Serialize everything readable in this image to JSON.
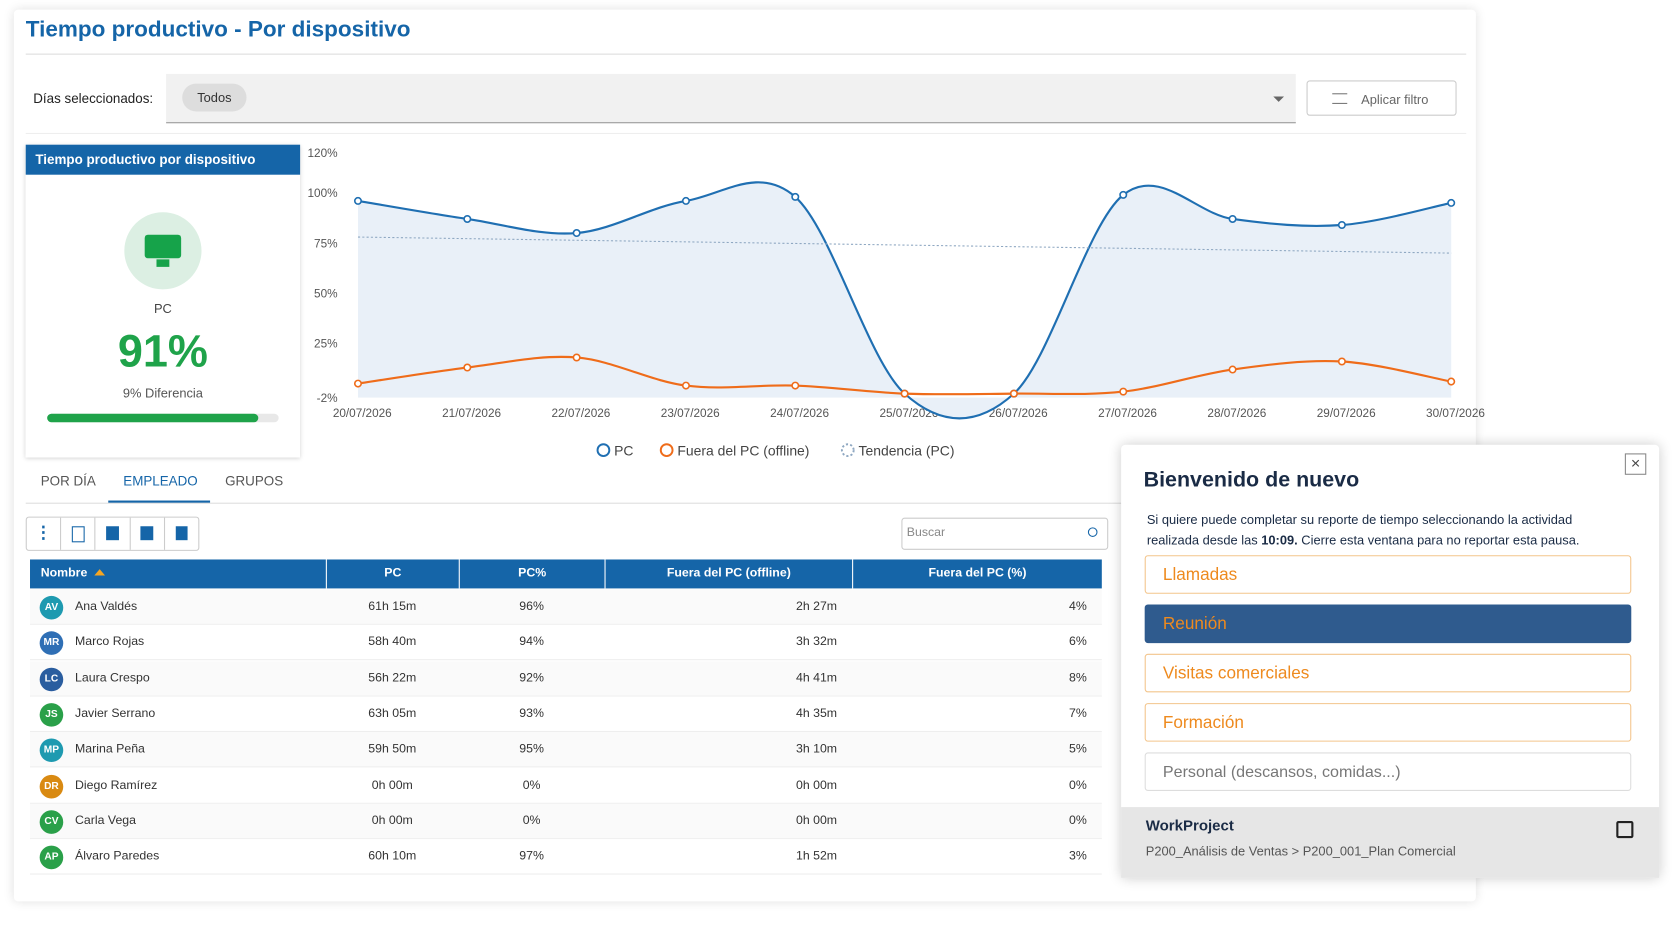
{
  "header": {
    "title": "Tiempo productivo - Por dispositivo"
  },
  "filter": {
    "label": "Días seleccionados:",
    "chip": "Todos",
    "button": "Aplicar filtro"
  },
  "card": {
    "title": "Tiempo productivo por dispositivo",
    "device": "PC",
    "value": 91,
    "value_label": "91%",
    "difference": "9% Diferencia"
  },
  "chart_data": {
    "type": "line",
    "categories": [
      "20/07/2026",
      "21/07/2026",
      "22/07/2026",
      "23/07/2026",
      "24/07/2026",
      "25/07/2026",
      "26/07/2026",
      "27/07/2026",
      "28/07/2026",
      "29/07/2026",
      "30/07/2026"
    ],
    "series": [
      {
        "name": "PC",
        "color": "#1f6fb2",
        "values": [
          96,
          87,
          80,
          96,
          98,
          0,
          0,
          99,
          87,
          84,
          95
        ]
      },
      {
        "name": "Fuera del PC (offline)",
        "color": "#ef6c1a",
        "values": [
          5,
          13,
          18,
          4,
          4,
          0,
          0,
          1,
          12,
          16,
          6
        ]
      },
      {
        "name": "Tendencia (PC)",
        "color": "#8fa8c2",
        "values": [
          78,
          77.2,
          76.4,
          75.6,
          74.8,
          74,
          73.2,
          72.4,
          71.6,
          70.8,
          70
        ]
      }
    ],
    "ylim": [
      -2,
      120
    ],
    "yticks": [
      {
        "value": -2,
        "label": "-2%"
      },
      {
        "value": 25,
        "label": "25%"
      },
      {
        "value": 50,
        "label": "50%"
      },
      {
        "value": 75,
        "label": "75%"
      },
      {
        "value": 100,
        "label": "100%"
      },
      {
        "value": 120,
        "label": "120%"
      }
    ]
  },
  "tabs": [
    "POR DÍA",
    "EMPLEADO",
    "GRUPOS"
  ],
  "search": "Buscar",
  "table": {
    "columns": [
      "Nombre",
      "PC",
      "PC%",
      "Fuera del PC (offline)",
      "Fuera del PC (%)"
    ],
    "rows": [
      {
        "initials": "AV",
        "cells": [
          "Ana Valdés",
          "61h 15m",
          "96%",
          "2h 27m",
          "4%"
        ]
      },
      {
        "initials": "MR",
        "cells": [
          "Marco Rojas",
          "58h 40m",
          "94%",
          "3h 32m",
          "6%"
        ]
      },
      {
        "initials": "LC",
        "cells": [
          "Laura Crespo",
          "56h 22m",
          "92%",
          "4h 41m",
          "8%"
        ]
      },
      {
        "initials": "JS",
        "cells": [
          "Javier Serrano",
          "63h 05m",
          "93%",
          "4h 35m",
          "7%"
        ]
      },
      {
        "initials": "MP",
        "cells": [
          "Marina Peña",
          "59h 50m",
          "95%",
          "3h 10m",
          "5%"
        ]
      },
      {
        "initials": "DR",
        "cells": [
          "Diego Ramírez",
          "0h 00m",
          "0%",
          "0h 00m",
          "0%"
        ]
      },
      {
        "initials": "CV",
        "cells": [
          "Carla Vega",
          "0h 00m",
          "0%",
          "0h 00m",
          "0%"
        ]
      },
      {
        "initials": "AP",
        "cells": [
          "Álvaro Paredes",
          "60h 10m",
          "97%",
          "1h 52m",
          "3%"
        ]
      }
    ]
  },
  "modal": {
    "title": "Bienvenido de nuevo",
    "text_before": "Si quiere puede completar su reporte de tiempo seleccionando la actividad realizada desde las",
    "time": "10:09.",
    "text_after": "Cierre esta ventana para no reportar esta pausa.",
    "options": [
      "Llamadas",
      "Reunión",
      "Visitas comerciales",
      "Formación",
      "Personal (descansos, comidas...)"
    ],
    "footer_title": "WorkProject",
    "footer_path": "P200_Análisis de Ventas > P200_001_Plan Comercial"
  }
}
